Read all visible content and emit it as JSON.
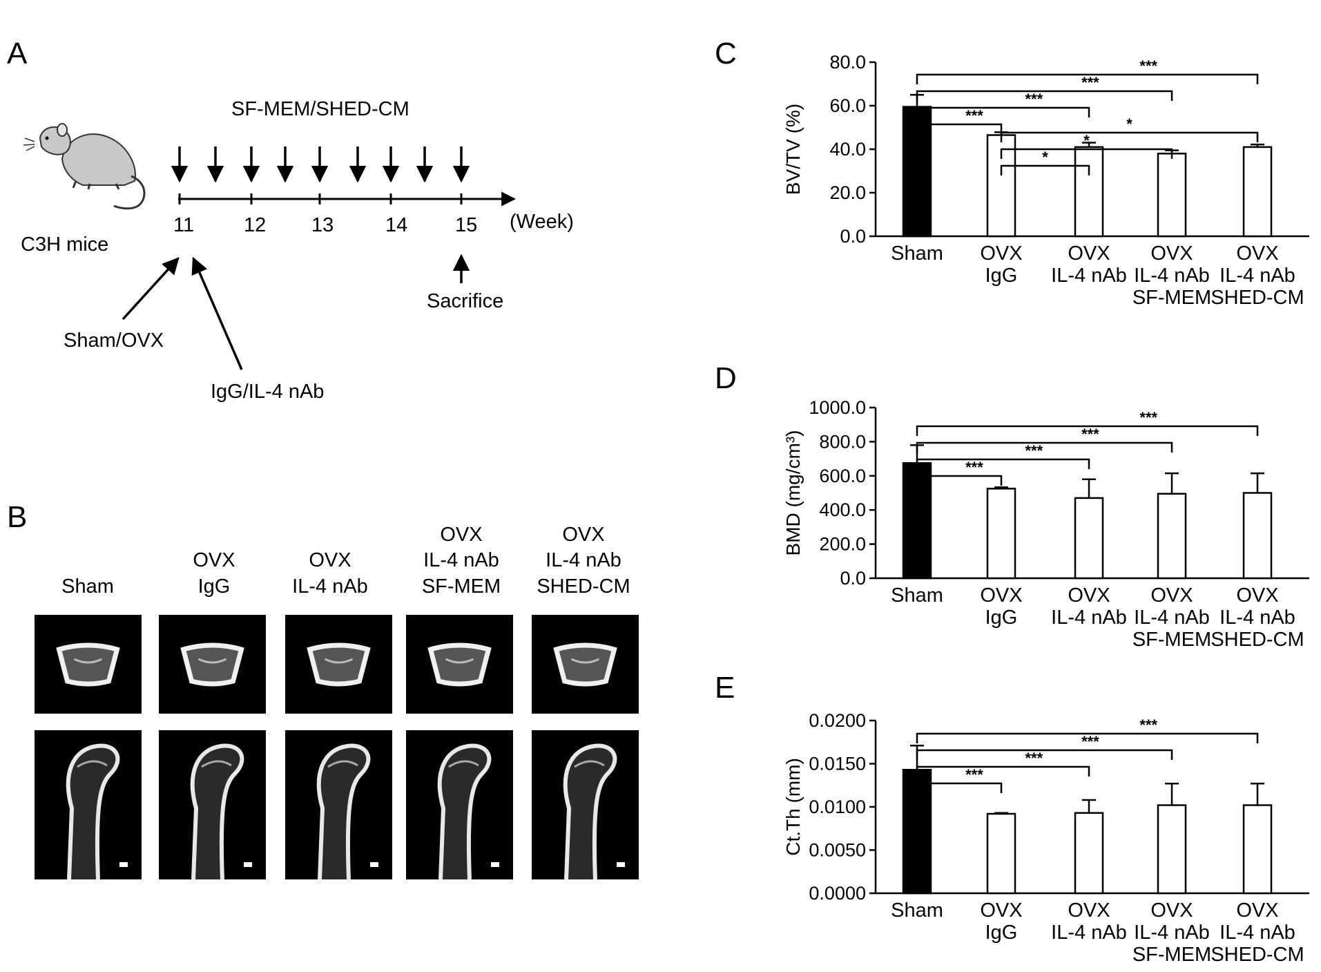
{
  "panels": {
    "a": {
      "label": "A",
      "treatment": "SF-MEM/SHED-CM",
      "subject": "C3H mice",
      "weeks": [
        "11",
        "12",
        "13",
        "14",
        "15"
      ],
      "unit": "(Week)",
      "surgery": "Sham/OVX",
      "antibody": "IgG/IL-4 nAb",
      "endpoint": "Sacrifice"
    },
    "b": {
      "label": "B",
      "groups": [
        {
          "l1": "",
          "l2": "",
          "l3": "Sham"
        },
        {
          "l1": "",
          "l2": "OVX",
          "l3": "IgG"
        },
        {
          "l1": "",
          "l2": "OVX",
          "l3": "IL-4 nAb"
        },
        {
          "l1": "OVX",
          "l2": "IL-4 nAb",
          "l3": "SF-MEM"
        },
        {
          "l1": "OVX",
          "l2": "IL-4 nAb",
          "l3": "SHED-CM"
        }
      ]
    }
  },
  "chart_data": [
    {
      "panel": "C",
      "type": "bar",
      "ylabel": "BV/TV (%)",
      "ylim": [
        0,
        80
      ],
      "yticks": [
        "0.0",
        "20.0",
        "40.0",
        "60.0",
        "80.0"
      ],
      "categories": [
        [
          "Sham"
        ],
        [
          "OVX",
          "IgG"
        ],
        [
          "OVX",
          "IL-4 nAb"
        ],
        [
          "OVX",
          "IL-4 nAb",
          "SF-MEM"
        ],
        [
          "OVX",
          "IL-4 nAb",
          "SHED-CM"
        ]
      ],
      "values": [
        59.5,
        46.5,
        41.0,
        38.0,
        41.0
      ],
      "errors": [
        5.5,
        1.3,
        2.0,
        1.5,
        1.2
      ],
      "fills": [
        "#000000",
        "#ffffff",
        "#ffffff",
        "#ffffff",
        "#ffffff"
      ],
      "significance": [
        {
          "from": 0,
          "to": 1,
          "label": "***"
        },
        {
          "from": 0,
          "to": 2,
          "label": "***"
        },
        {
          "from": 0,
          "to": 3,
          "label": "***"
        },
        {
          "from": 0,
          "to": 4,
          "label": "***"
        },
        {
          "from": 1,
          "to": 2,
          "label": "*"
        },
        {
          "from": 1,
          "to": 3,
          "label": "*"
        },
        {
          "from": 1,
          "to": 4,
          "label": "*"
        }
      ]
    },
    {
      "panel": "D",
      "type": "bar",
      "ylabel": "BMD (mg/cm³)",
      "ylim": [
        0,
        1000
      ],
      "yticks": [
        "0.0",
        "200.0",
        "400.0",
        "600.0",
        "800.0",
        "1000.0"
      ],
      "categories": [
        [
          "Sham"
        ],
        [
          "OVX",
          "IgG"
        ],
        [
          "OVX",
          "IL-4 nAb"
        ],
        [
          "OVX",
          "IL-4 nAb",
          "SF-MEM"
        ],
        [
          "OVX",
          "IL-4 nAb",
          "SHED-CM"
        ]
      ],
      "values": [
        675,
        525,
        470,
        495,
        500
      ],
      "errors": [
        105,
        8,
        110,
        120,
        115
      ],
      "fills": [
        "#000000",
        "#ffffff",
        "#ffffff",
        "#ffffff",
        "#ffffff"
      ],
      "significance": [
        {
          "from": 0,
          "to": 1,
          "label": "***"
        },
        {
          "from": 0,
          "to": 2,
          "label": "***"
        },
        {
          "from": 0,
          "to": 3,
          "label": "***"
        },
        {
          "from": 0,
          "to": 4,
          "label": "***"
        }
      ]
    },
    {
      "panel": "E",
      "type": "bar",
      "ylabel": "Ct.Th (mm)",
      "ylim": [
        0,
        0.02
      ],
      "yticks": [
        "0.0000",
        "0.0050",
        "0.0100",
        "0.0150",
        "0.0200"
      ],
      "categories": [
        [
          "Sham"
        ],
        [
          "OVX",
          "IgG"
        ],
        [
          "OVX",
          "IL-4 nAb"
        ],
        [
          "OVX",
          "IL-4 nAb",
          "SF-MEM"
        ],
        [
          "OVX",
          "IL-4 nAb",
          "SHED-CM"
        ]
      ],
      "values": [
        0.0143,
        0.0092,
        0.0093,
        0.0102,
        0.0102
      ],
      "errors": [
        0.0028,
        0.0001,
        0.0015,
        0.0025,
        0.0025
      ],
      "fills": [
        "#000000",
        "#ffffff",
        "#ffffff",
        "#ffffff",
        "#ffffff"
      ],
      "significance": [
        {
          "from": 0,
          "to": 1,
          "label": "***"
        },
        {
          "from": 0,
          "to": 2,
          "label": "***"
        },
        {
          "from": 0,
          "to": 3,
          "label": "***"
        },
        {
          "from": 0,
          "to": 4,
          "label": "***"
        }
      ]
    }
  ]
}
